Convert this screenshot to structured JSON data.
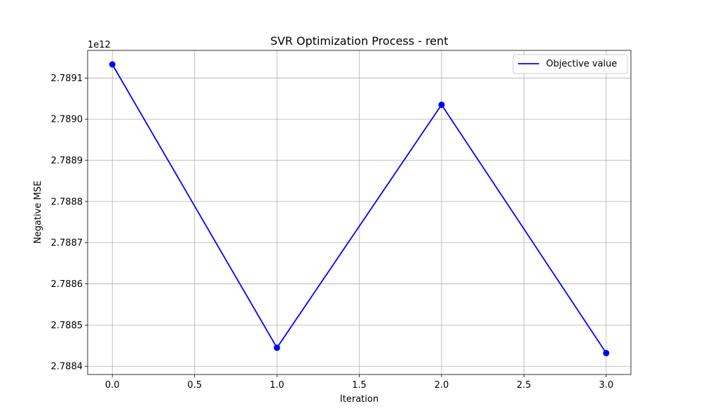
{
  "chart_data": {
    "type": "line",
    "title": "SVR Optimization Process - rent",
    "xlabel": "Iteration",
    "ylabel": "Negative MSE",
    "y_offset_label": "1e12",
    "y_scale": 1000000000000,
    "x": [
      0,
      1,
      2,
      3
    ],
    "series": [
      {
        "name": "Objective value",
        "values": [
          2.789133,
          2.788445,
          2.789035,
          2.788432
        ],
        "color": "#0000ff"
      }
    ],
    "xlim": [
      -0.15,
      3.15
    ],
    "ylim": [
      2.78838,
      2.789167
    ],
    "xticks": [
      0.0,
      0.5,
      1.0,
      1.5,
      2.0,
      2.5,
      3.0
    ],
    "xtick_labels": [
      "0.0",
      "0.5",
      "1.0",
      "1.5",
      "2.0",
      "2.5",
      "3.0"
    ],
    "yticks": [
      2.7884,
      2.7885,
      2.7886,
      2.7887,
      2.7888,
      2.7889,
      2.789,
      2.7891
    ],
    "ytick_labels": [
      "2.7884",
      "2.7885",
      "2.7886",
      "2.7887",
      "2.7888",
      "2.7889",
      "2.7890",
      "2.7891"
    ],
    "grid": true,
    "legend_position": "top-right",
    "grid_color": "#b0b0b0"
  }
}
